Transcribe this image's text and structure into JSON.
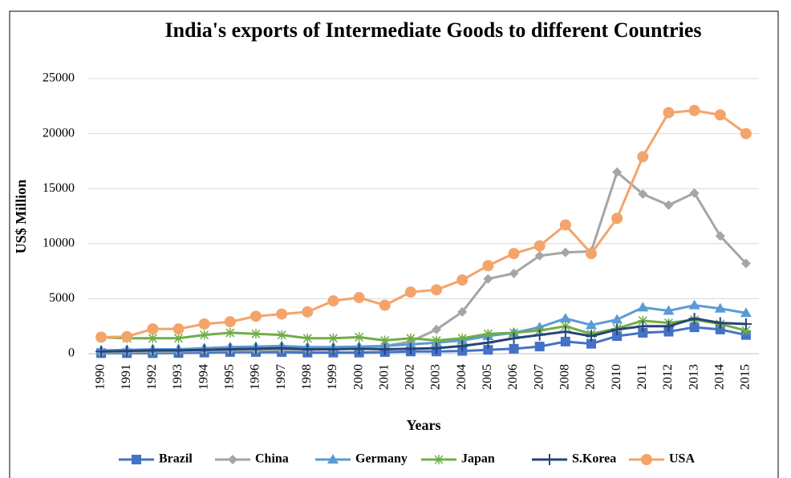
{
  "chart_data": {
    "type": "line",
    "title": "India's exports of Intermediate Goods to different Countries",
    "x_label": "Years",
    "y_label": "US$ Million",
    "categories": [
      "1990",
      "1991",
      "1992",
      "1993",
      "1994",
      "1995",
      "1996",
      "1997",
      "1998",
      "1999",
      "2000",
      "2001",
      "2002",
      "2003",
      "2004",
      "2005",
      "2006",
      "2007",
      "2008",
      "2009",
      "2010",
      "2011",
      "2012",
      "2013",
      "2014",
      "2015"
    ],
    "ylim": [
      0,
      25000
    ],
    "yticks": [
      0,
      5000,
      10000,
      15000,
      20000,
      25000
    ],
    "grid": true,
    "legend": "bottom",
    "series": [
      {
        "name": "Brazil",
        "color": "#4472c4",
        "marker": "square",
        "values": [
          50,
          50,
          50,
          60,
          100,
          150,
          150,
          150,
          100,
          100,
          100,
          150,
          200,
          200,
          250,
          350,
          450,
          650,
          1100,
          900,
          1600,
          1900,
          2000,
          2400,
          2200,
          1700
        ]
      },
      {
        "name": "China",
        "color": "#a5a5a5",
        "marker": "diamond",
        "values": [
          100,
          150,
          150,
          200,
          250,
          300,
          300,
          350,
          350,
          400,
          500,
          700,
          1100,
          2200,
          3800,
          6800,
          7300,
          8900,
          9200,
          9300,
          16500,
          14500,
          13500,
          14600,
          10700,
          8200
        ]
      },
      {
        "name": "Germany",
        "color": "#5b9bd5",
        "marker": "triangle",
        "values": [
          300,
          350,
          400,
          400,
          500,
          600,
          650,
          700,
          600,
          600,
          650,
          700,
          850,
          1000,
          1200,
          1600,
          1900,
          2400,
          3200,
          2600,
          3100,
          4200,
          3900,
          4400,
          4100,
          3700
        ]
      },
      {
        "name": "Japan",
        "color": "#70ad47",
        "marker": "star",
        "values": [
          1500,
          1400,
          1400,
          1400,
          1700,
          1900,
          1800,
          1700,
          1400,
          1400,
          1500,
          1200,
          1400,
          1200,
          1400,
          1800,
          1900,
          2100,
          2500,
          1800,
          2300,
          3000,
          2800,
          3100,
          2700,
          2100
        ]
      },
      {
        "name": "S.Korea",
        "color": "#264478",
        "marker": "plus",
        "values": [
          200,
          250,
          300,
          300,
          350,
          400,
          450,
          500,
          400,
          400,
          450,
          400,
          450,
          500,
          700,
          1000,
          1400,
          1700,
          2000,
          1600,
          2200,
          2500,
          2500,
          3200,
          2800,
          2700
        ]
      },
      {
        "name": "USA",
        "color": "#f4a46a",
        "marker": "circle",
        "values": [
          1500,
          1550,
          2250,
          2250,
          2700,
          2900,
          3400,
          3600,
          3800,
          4800,
          5100,
          4400,
          5600,
          5800,
          6700,
          8000,
          9100,
          9800,
          11700,
          9100,
          12300,
          17900,
          21900,
          22100,
          21700,
          20000
        ]
      }
    ]
  }
}
